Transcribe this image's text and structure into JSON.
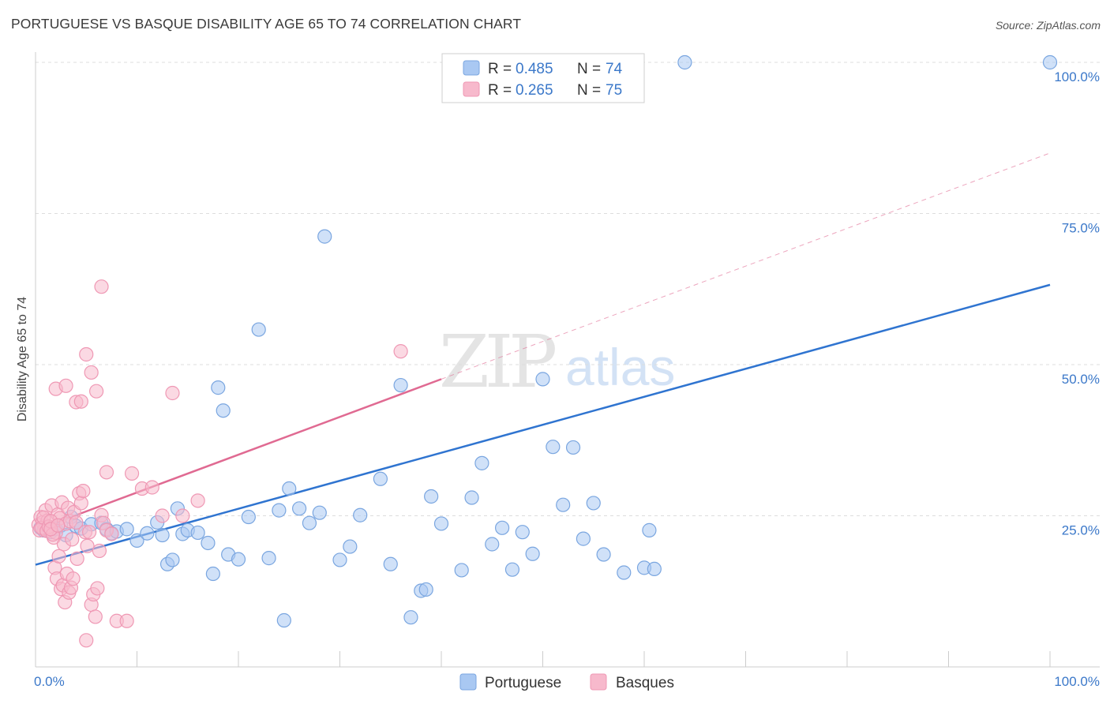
{
  "title": "PORTUGUESE VS BASQUE DISABILITY AGE 65 TO 74 CORRELATION CHART",
  "source": "Source: ZipAtlas.com",
  "watermark": {
    "zip": "ZIP",
    "atlas": "atlas"
  },
  "legend_top": [
    {
      "r_label": "R =",
      "r_value": "0.485",
      "n_label": "N =",
      "n_value": "74",
      "color": "#6fa3e8"
    },
    {
      "r_label": "R =",
      "r_value": "0.265",
      "n_label": "N =",
      "n_value": "75",
      "color": "#f08bab"
    }
  ],
  "colors": {
    "portuguese_fill": "#a9c8f2",
    "portuguese_stroke": "#7aa6e0",
    "portuguese_line": "#2f74d0",
    "basques_fill": "#f7b9cc",
    "basques_stroke": "#ef98b4",
    "basques_line": "#e06a92",
    "axis_value_text": "#3b78c9",
    "grid": "#dddddd"
  },
  "chart_data": {
    "type": "scatter",
    "title": "PORTUGUESE VS BASQUE DISABILITY AGE 65 TO 74 CORRELATION CHART",
    "xlabel": "",
    "ylabel": "Disability Age 65 to 74",
    "xlim": [
      0,
      100
    ],
    "ylim": [
      0,
      100
    ],
    "x_ticks": [
      {
        "value": 0,
        "label": "0.0%"
      },
      {
        "value": 100,
        "label": "100.0%"
      }
    ],
    "y_ticks": [
      {
        "value": 25,
        "label": "25.0%"
      },
      {
        "value": 50,
        "label": "50.0%"
      },
      {
        "value": 75,
        "label": "75.0%"
      },
      {
        "value": 100,
        "label": "100.0%"
      }
    ],
    "grid": true,
    "legend_position": "bottom-center",
    "series": [
      {
        "name": "Portuguese",
        "points": [
          [
            0.5,
            23.0
          ],
          [
            0.8,
            22.6
          ],
          [
            1.0,
            23.4
          ],
          [
            1.5,
            22.3
          ],
          [
            2.0,
            22.8
          ],
          [
            2.5,
            23.4
          ],
          [
            3.0,
            21.8
          ],
          [
            3.5,
            24.8
          ],
          [
            4.0,
            23.3
          ],
          [
            4.5,
            22.9
          ],
          [
            5.5,
            23.6
          ],
          [
            6.5,
            23.8
          ],
          [
            7.0,
            22.8
          ],
          [
            7.5,
            22.1
          ],
          [
            8.0,
            22.4
          ],
          [
            9.0,
            22.8
          ],
          [
            10.0,
            20.9
          ],
          [
            11.0,
            22.1
          ],
          [
            12.0,
            23.9
          ],
          [
            12.5,
            21.8
          ],
          [
            13.0,
            17.0
          ],
          [
            13.5,
            17.7
          ],
          [
            14.0,
            26.2
          ],
          [
            14.5,
            22.0
          ],
          [
            15.0,
            22.6
          ],
          [
            16.0,
            22.2
          ],
          [
            17.0,
            20.5
          ],
          [
            17.5,
            15.4
          ],
          [
            18.0,
            46.2
          ],
          [
            18.5,
            42.4
          ],
          [
            19.0,
            18.6
          ],
          [
            20.0,
            17.8
          ],
          [
            21.0,
            24.8
          ],
          [
            22.0,
            55.8
          ],
          [
            23.0,
            18.0
          ],
          [
            24.0,
            25.9
          ],
          [
            25.0,
            29.5
          ],
          [
            26.0,
            26.2
          ],
          [
            27.0,
            23.8
          ],
          [
            28.0,
            25.5
          ],
          [
            30.0,
            17.7
          ],
          [
            31.0,
            19.9
          ],
          [
            32.0,
            25.1
          ],
          [
            34.0,
            31.1
          ],
          [
            35.0,
            17.0
          ],
          [
            36.0,
            46.6
          ],
          [
            37.0,
            8.2
          ],
          [
            38.0,
            12.6
          ],
          [
            39.0,
            28.2
          ],
          [
            40.0,
            23.7
          ],
          [
            42.0,
            16.0
          ],
          [
            43.0,
            28.0
          ],
          [
            44.0,
            33.7
          ],
          [
            45.0,
            20.3
          ],
          [
            46.0,
            23.0
          ],
          [
            47.0,
            16.1
          ],
          [
            48.0,
            22.3
          ],
          [
            49.0,
            18.7
          ],
          [
            50.0,
            47.6
          ],
          [
            51.0,
            36.4
          ],
          [
            52.0,
            26.8
          ],
          [
            53.0,
            36.3
          ],
          [
            54.0,
            21.2
          ],
          [
            55.0,
            27.1
          ],
          [
            56.0,
            18.6
          ],
          [
            58.0,
            15.6
          ],
          [
            60.0,
            16.4
          ],
          [
            60.5,
            22.6
          ],
          [
            61.0,
            16.2
          ],
          [
            24.5,
            7.7
          ],
          [
            28.5,
            71.2
          ],
          [
            38.5,
            12.8
          ],
          [
            64.0,
            100.0
          ],
          [
            100.0,
            100.0
          ]
        ]
      },
      {
        "name": "Basques",
        "points": [
          [
            0.3,
            23.5
          ],
          [
            0.5,
            24.8
          ],
          [
            0.7,
            23.9
          ],
          [
            0.9,
            22.7
          ],
          [
            1.0,
            25.9
          ],
          [
            1.2,
            24.2
          ],
          [
            1.4,
            23.0
          ],
          [
            1.6,
            26.7
          ],
          [
            1.8,
            21.4
          ],
          [
            2.0,
            22.2
          ],
          [
            2.2,
            25.2
          ],
          [
            2.4,
            24.6
          ],
          [
            2.6,
            27.2
          ],
          [
            2.8,
            20.3
          ],
          [
            3.0,
            23.7
          ],
          [
            3.2,
            26.3
          ],
          [
            3.4,
            24.1
          ],
          [
            3.6,
            21.1
          ],
          [
            3.8,
            25.6
          ],
          [
            4.0,
            23.9
          ],
          [
            0.4,
            22.6
          ],
          [
            0.6,
            23.0
          ],
          [
            0.8,
            24.7
          ],
          [
            1.1,
            22.5
          ],
          [
            1.3,
            23.2
          ],
          [
            1.5,
            24.1
          ],
          [
            1.7,
            21.9
          ],
          [
            1.9,
            16.4
          ],
          [
            2.1,
            14.6
          ],
          [
            2.3,
            18.3
          ],
          [
            2.5,
            12.9
          ],
          [
            2.7,
            13.5
          ],
          [
            2.9,
            10.7
          ],
          [
            3.1,
            15.4
          ],
          [
            3.3,
            12.3
          ],
          [
            3.5,
            13.1
          ],
          [
            3.7,
            14.6
          ],
          [
            4.1,
            17.9
          ],
          [
            4.3,
            28.7
          ],
          [
            4.5,
            27.1
          ],
          [
            4.7,
            29.1
          ],
          [
            4.9,
            22.3
          ],
          [
            5.1,
            20.0
          ],
          [
            5.3,
            22.3
          ],
          [
            5.5,
            10.3
          ],
          [
            5.7,
            12.0
          ],
          [
            5.9,
            8.3
          ],
          [
            6.1,
            13.0
          ],
          [
            6.3,
            19.2
          ],
          [
            6.5,
            25.1
          ],
          [
            6.7,
            23.8
          ],
          [
            7.0,
            22.6
          ],
          [
            7.5,
            22.0
          ],
          [
            2.0,
            46.0
          ],
          [
            3.0,
            46.5
          ],
          [
            4.0,
            43.8
          ],
          [
            4.5,
            43.9
          ],
          [
            5.0,
            51.7
          ],
          [
            5.5,
            48.7
          ],
          [
            6.0,
            45.6
          ],
          [
            6.5,
            62.9
          ],
          [
            7.0,
            32.2
          ],
          [
            8.0,
            7.6
          ],
          [
            9.0,
            7.6
          ],
          [
            9.5,
            32.0
          ],
          [
            10.5,
            29.5
          ],
          [
            11.5,
            29.7
          ],
          [
            12.5,
            25.0
          ],
          [
            13.5,
            45.3
          ],
          [
            14.5,
            25.0
          ],
          [
            16.0,
            27.5
          ],
          [
            1.5,
            22.8
          ],
          [
            2.2,
            23.4
          ],
          [
            36.0,
            52.2
          ],
          [
            5.0,
            4.4
          ]
        ]
      }
    ],
    "trend_lines": [
      {
        "series": "Portuguese",
        "from": [
          0,
          16.9
        ],
        "to": [
          100,
          63.2
        ],
        "dashed_extension": false
      },
      {
        "series": "Basques",
        "from": [
          0,
          22.6
        ],
        "to": [
          40,
          47.6
        ],
        "dashed_extension_to": [
          100,
          85.0
        ]
      }
    ]
  }
}
